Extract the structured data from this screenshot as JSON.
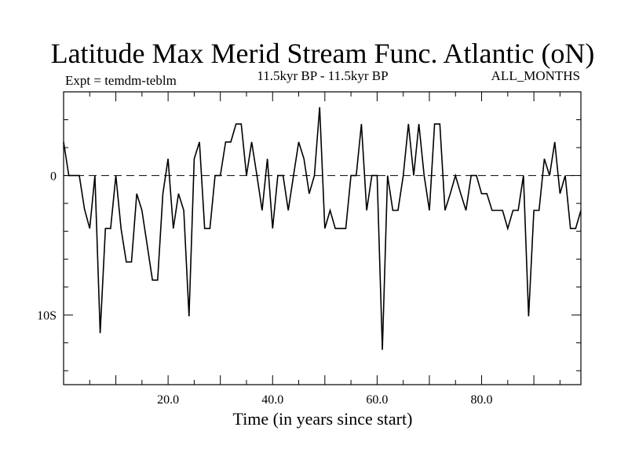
{
  "chart_data": {
    "type": "line",
    "title": "Latitude Max Merid Stream Func. Atlantic (oN)",
    "subtitle_left": "Expt = temdm-teblm",
    "subtitle_center": "11.5kyr BP - 11.5kyr BP",
    "subtitle_right": "ALL_MONTHS",
    "xlabel": "Time (in years since start)",
    "ylabel": "",
    "xlim": [
      0,
      99
    ],
    "ylim": [
      -15,
      6
    ],
    "x_ticks": [
      {
        "value": 20,
        "label": "20.0"
      },
      {
        "value": 40,
        "label": "40.0"
      },
      {
        "value": 60,
        "label": "60.0"
      },
      {
        "value": 80,
        "label": "80.0"
      }
    ],
    "y_ticks": [
      {
        "value": 0,
        "label": "0"
      },
      {
        "value": -10,
        "label": "10S"
      }
    ],
    "reference_line": 0,
    "series": [
      {
        "name": "Latitude max",
        "x": [
          0,
          1,
          2,
          3,
          4,
          5,
          6,
          7,
          8,
          9,
          10,
          11,
          12,
          13,
          14,
          15,
          16,
          17,
          18,
          19,
          20,
          21,
          22,
          23,
          24,
          25,
          26,
          27,
          28,
          29,
          30,
          31,
          32,
          33,
          34,
          35,
          36,
          37,
          38,
          39,
          40,
          41,
          42,
          43,
          44,
          45,
          46,
          47,
          48,
          49,
          50,
          51,
          52,
          53,
          54,
          55,
          56,
          57,
          58,
          59,
          60,
          61,
          62,
          63,
          64,
          65,
          66,
          67,
          68,
          69,
          70,
          71,
          72,
          73,
          74,
          75,
          76,
          77,
          78,
          79,
          80,
          81,
          82,
          83,
          84,
          85,
          86,
          87,
          88,
          89,
          90,
          91,
          92,
          93,
          94,
          95,
          96,
          97,
          98,
          99
        ],
        "values": [
          2.4,
          0,
          0,
          0,
          -2.4,
          -3.8,
          0,
          -11.3,
          -3.8,
          -3.8,
          0,
          -3.8,
          -6.2,
          -6.2,
          -1.3,
          -2.5,
          -5,
          -7.5,
          -7.5,
          -1.3,
          1.2,
          -3.8,
          -1.3,
          -2.5,
          -10.1,
          1.2,
          2.4,
          -3.8,
          -3.8,
          0,
          0,
          2.4,
          2.4,
          3.7,
          3.7,
          0,
          2.4,
          0,
          -2.5,
          1.2,
          -3.8,
          0,
          0,
          -2.5,
          0,
          2.4,
          1.2,
          -1.3,
          0,
          4.9,
          -3.8,
          -2.5,
          -3.8,
          -3.8,
          -3.8,
          0,
          0,
          3.7,
          -2.5,
          0,
          0,
          -12.5,
          0,
          -2.5,
          -2.5,
          0,
          3.7,
          0,
          3.7,
          0,
          -2.5,
          3.7,
          3.7,
          -2.5,
          -1.3,
          0,
          -1.3,
          -2.5,
          0,
          0,
          -1.3,
          -1.3,
          -2.5,
          -2.5,
          -2.5,
          -3.8,
          -2.5,
          -2.5,
          0,
          -10.1,
          -2.5,
          -2.5,
          1.2,
          0,
          2.4,
          -1.3,
          0,
          -3.8,
          -3.8,
          -2.5
        ]
      }
    ]
  }
}
